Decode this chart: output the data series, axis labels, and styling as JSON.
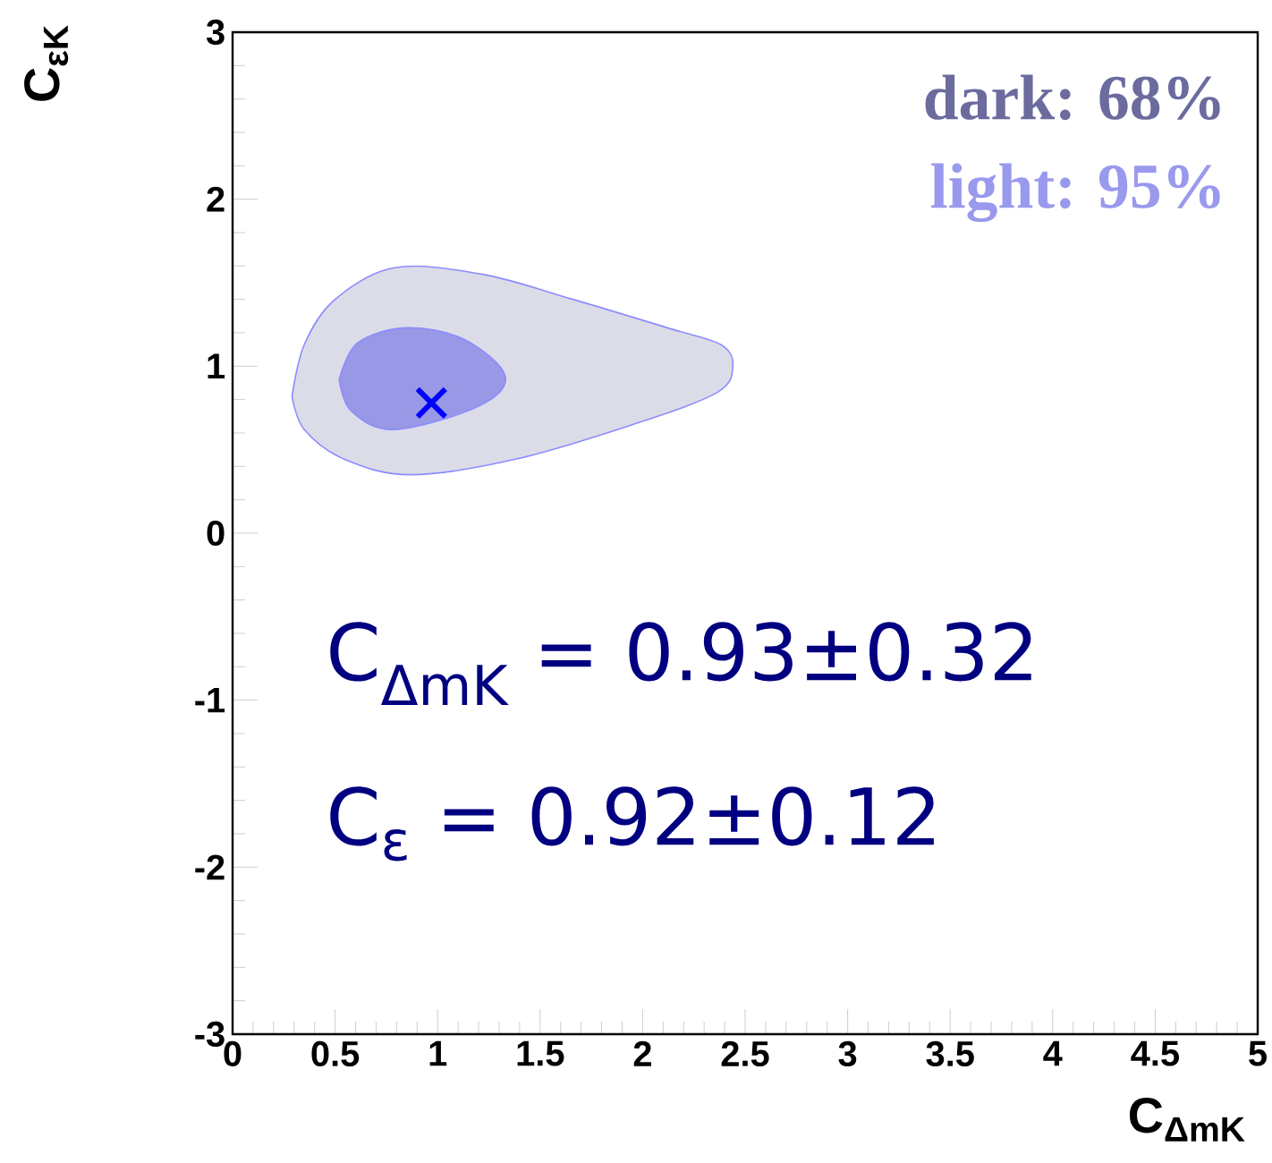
{
  "chart_data": {
    "type": "area",
    "xlabel": "C$_{ΔmK}$",
    "ylabel": "C$_{εK}$",
    "xlim": [
      0,
      5
    ],
    "ylim": [
      -3,
      3
    ],
    "xticks": [
      0,
      0.5,
      1,
      1.5,
      2,
      2.5,
      3,
      3.5,
      4,
      4.5,
      5
    ],
    "yticks": [
      -3,
      -2,
      -1,
      0,
      1,
      2,
      3
    ],
    "grid": false,
    "series": [
      {
        "color": "#dcdce8",
        "x": [
          0.29,
          0.35,
          0.5,
          0.79,
          1.22,
          1.66,
          2.12,
          2.38,
          2.44,
          2.36,
          1.95,
          1.37,
          0.87,
          0.55,
          0.35,
          0.29
        ],
        "values": [
          0.82,
          1.13,
          1.4,
          1.59,
          1.55,
          1.4,
          1.23,
          1.13,
          1.0,
          0.84,
          0.65,
          0.44,
          0.35,
          0.44,
          0.62,
          0.82
        ]
      },
      {
        "color": "#9898e6",
        "x": [
          0.52,
          0.61,
          0.85,
          1.13,
          1.33,
          1.2,
          0.79,
          0.58,
          0.52
        ],
        "values": [
          0.92,
          1.14,
          1.23,
          1.16,
          0.94,
          0.76,
          0.62,
          0.73,
          0.92
        ]
      },
      {
        "type": "scatter",
        "color": "#0000ff",
        "marker": "cross",
        "x": [
          0.97
        ],
        "values": [
          0.78
        ]
      }
    ],
    "annotations": [
      "dark: 68%",
      "light: 95%",
      "C$_{ΔmK}$ = 0.93±0.32",
      "C$_{ε}$     = 0.92±0.12"
    ]
  }
}
